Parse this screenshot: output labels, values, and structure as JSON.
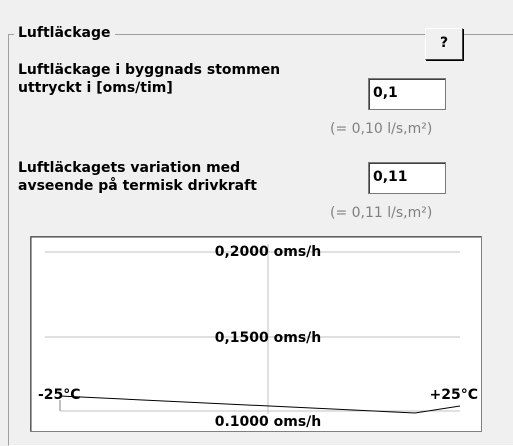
{
  "group": {
    "title": "Luftläckage",
    "help_button": "?"
  },
  "fields": [
    {
      "label_lines": [
        "Luftläckage i byggnads stommen",
        "uttryckt i [oms/tim]"
      ],
      "value": "0,1",
      "note": "(= 0,10 l/s,m²)"
    },
    {
      "label_lines": [
        "Luftläckagets variation med",
        "avseende på termisk drivkraft"
      ],
      "value": "0,11",
      "note": "(= 0,11 l/s,m²)"
    }
  ],
  "plot": {
    "top_label": "0,2000 oms/h",
    "middle_label": "0,1500 oms/h",
    "bottom_label": "0.1000 oms/h",
    "left_label": "-25°C",
    "right_label": "+25°C"
  }
}
